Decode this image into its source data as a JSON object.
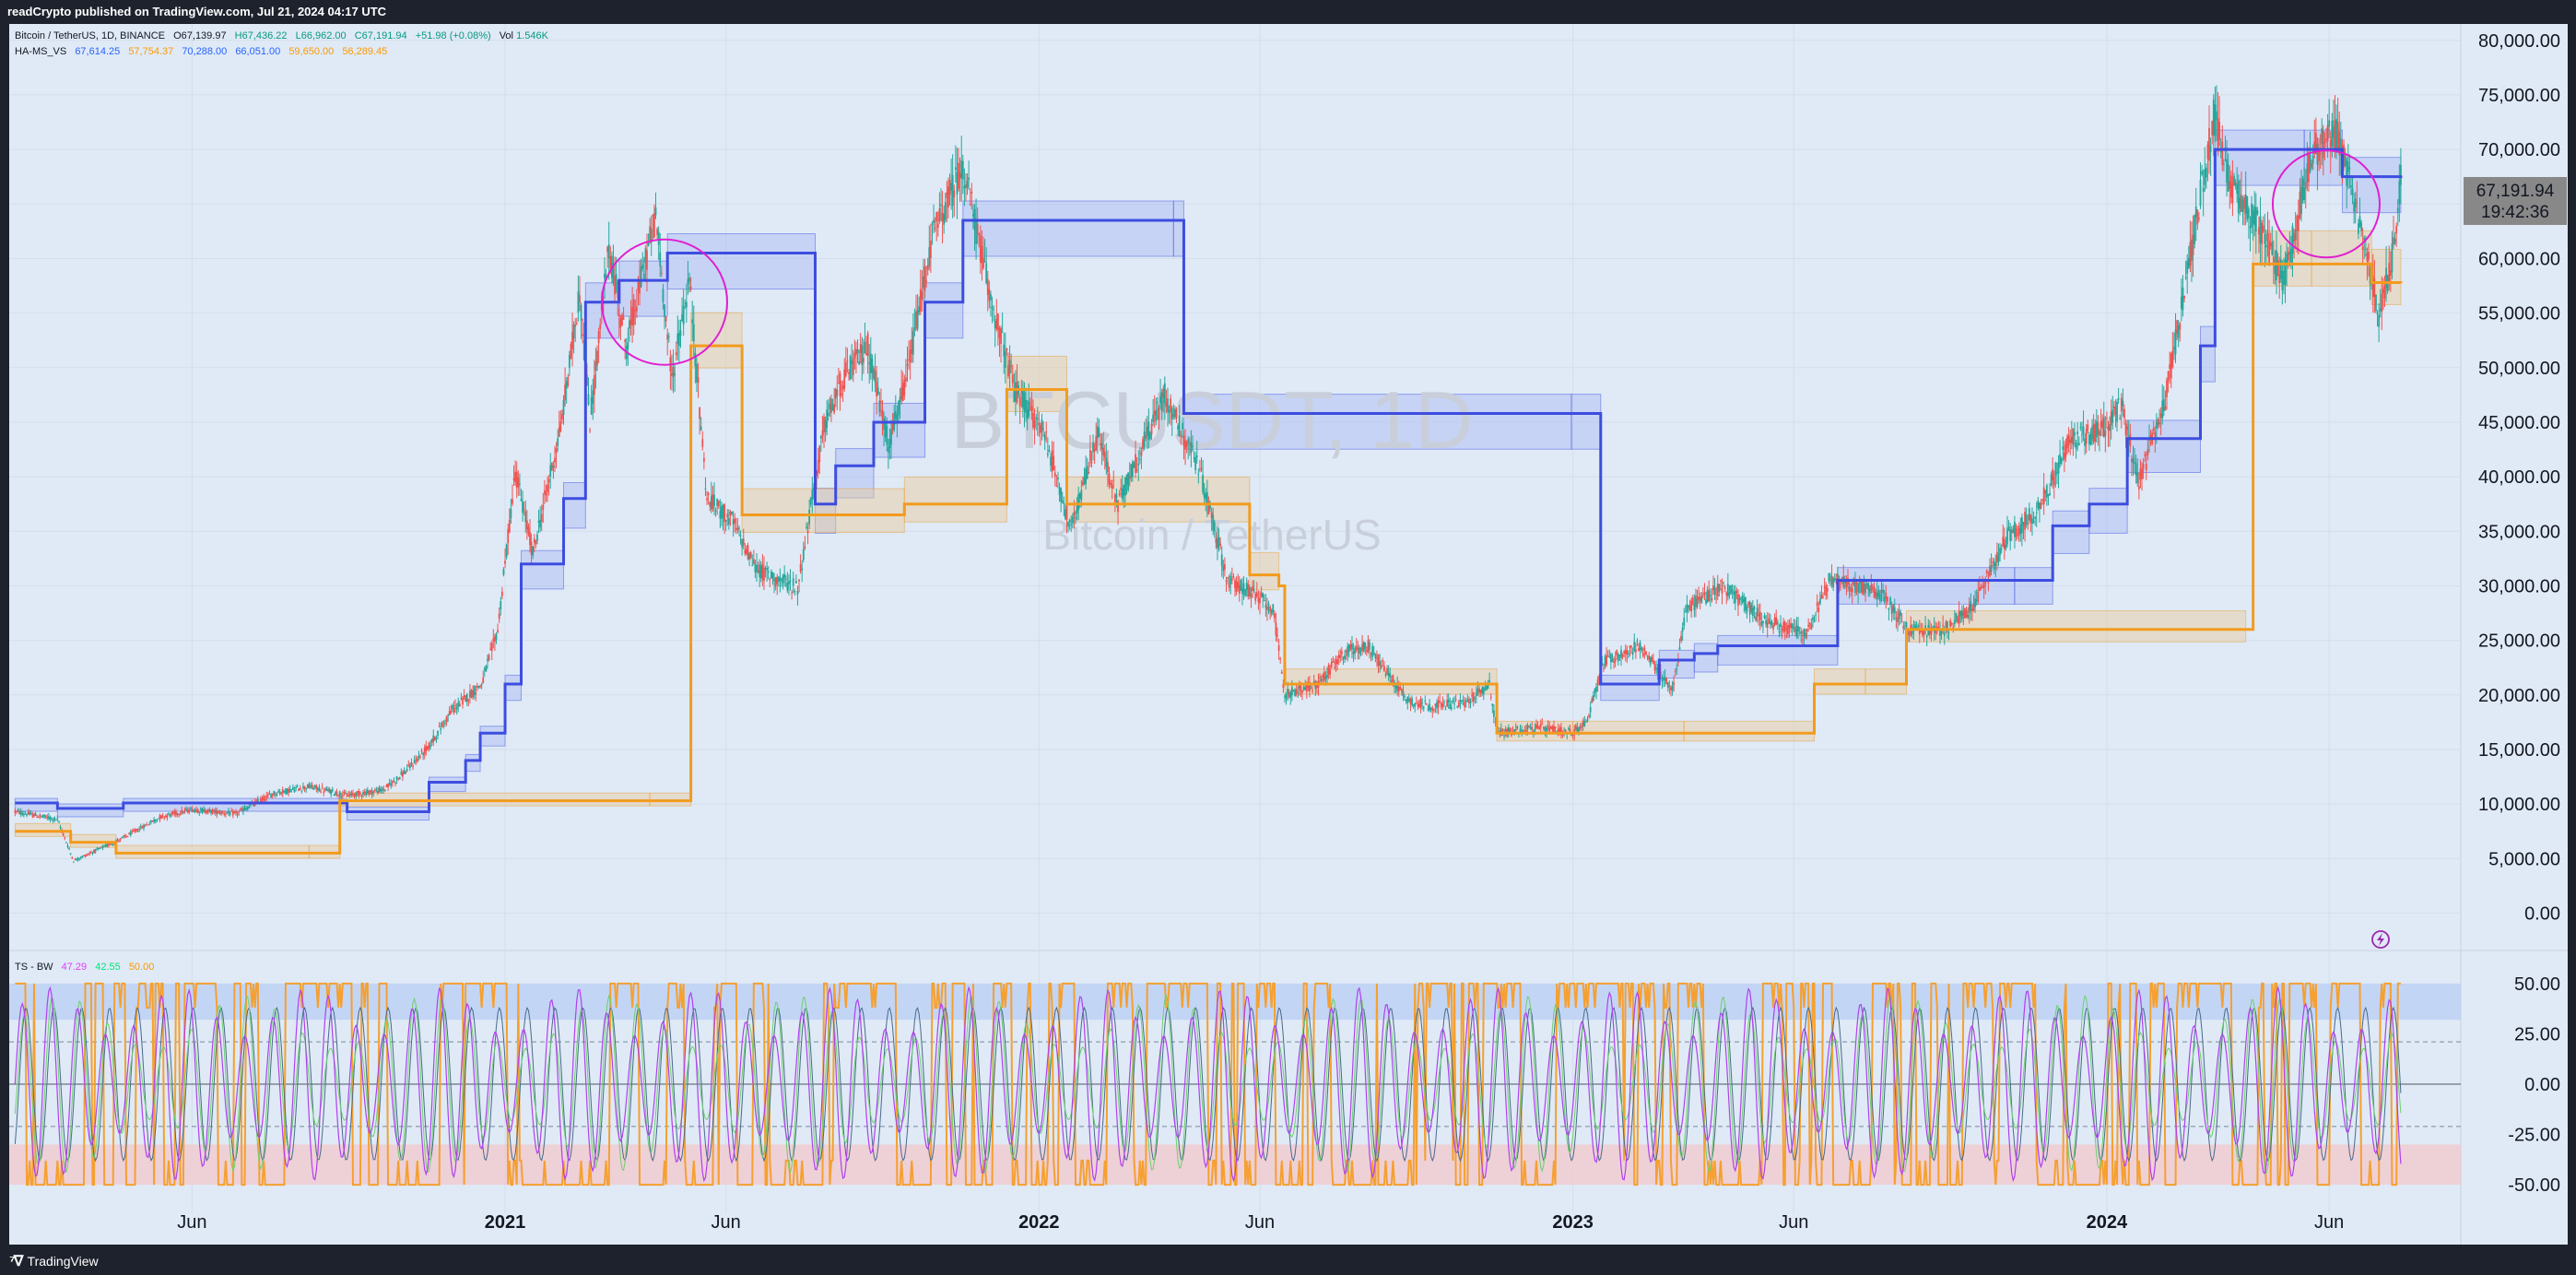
{
  "header": {
    "published_text": "readCrypto published on TradingView.com, Jul 21, 2024 04:17 UTC"
  },
  "footer": {
    "brand": "TradingView",
    "brand_icon": "tradingview-logo-icon"
  },
  "symbol_legend": {
    "symbol": "Bitcoin / TetherUS, 1D, BINANCE",
    "open": "O67,139.97",
    "high": "H67,436.22",
    "low": "L66,962.00",
    "close": "C67,191.94",
    "change": "+51.98 (+0.08%)",
    "volume_label": "Vol",
    "volume": "1.546K"
  },
  "indicator_legend": {
    "name": "HA-MS_VS",
    "values": [
      {
        "text": "67,614.25",
        "color": "#2962ff"
      },
      {
        "text": "57,754.37",
        "color": "#ff9800"
      },
      {
        "text": "70,288.00",
        "color": "#2962ff"
      },
      {
        "text": "66,051.00",
        "color": "#2962ff"
      },
      {
        "text": "59,650.00",
        "color": "#ff9800"
      },
      {
        "text": "56,289.45",
        "color": "#ff9800"
      }
    ]
  },
  "oscillator_legend": {
    "name": "TS - BW",
    "values": [
      {
        "text": "47.29",
        "color": "#e040fb"
      },
      {
        "text": "42.55",
        "color": "#00e676"
      },
      {
        "text": "50.00",
        "color": "#ff9800"
      }
    ]
  },
  "watermark": {
    "symbol": "BTCUSDT, 1D",
    "description": "Bitcoin / TetherUS"
  },
  "price_label": {
    "price": "67,191.94",
    "countdown": "19:42:36"
  },
  "alert_icon": "lightning-alert-icon",
  "colors": {
    "background": "#dfeaf6",
    "up_candle": "#26a69a",
    "down_candle": "#ef5350",
    "ha_high": "#3d4de0",
    "ha_low": "#f29b1e",
    "circle": "#e020d0",
    "osc_purple": "#b040f0",
    "osc_green": "#6cd06c",
    "osc_orange": "#f5a030"
  },
  "chart_data": [
    {
      "type": "line",
      "title": "BTCUSDT, 1D",
      "subtitle": "Bitcoin / TetherUS",
      "x_tick_labels": [
        "Jun",
        "2021",
        "Jun",
        "2022",
        "Jun",
        "2023",
        "Jun",
        "2024",
        "Jun"
      ],
      "x_tick_dates": [
        "2020-06-01",
        "2021-01-01",
        "2021-06-01",
        "2022-01-01",
        "2022-06-01",
        "2023-01-01",
        "2023-06-01",
        "2024-01-01",
        "2024-06-01"
      ],
      "y_tick_labels": [
        "80,000.00",
        "75,000.00",
        "70,000.00",
        "65,000.00",
        "60,000.00",
        "55,000.00",
        "50,000.00",
        "45,000.00",
        "40,000.00",
        "35,000.00",
        "30,000.00",
        "25,000.00",
        "20,000.00",
        "15,000.00",
        "10,000.00",
        "5,000.00",
        "0.00"
      ],
      "ylim": [
        -3000,
        81500
      ],
      "x_range": [
        "2020-01-28",
        "2024-08-30"
      ],
      "series": [
        {
          "name": "Price (approx. close)",
          "x": [
            "2020-02-01",
            "2020-03-01",
            "2020-03-12",
            "2020-04-15",
            "2020-05-10",
            "2020-06-01",
            "2020-07-01",
            "2020-07-27",
            "2020-08-20",
            "2020-09-15",
            "2020-10-10",
            "2020-10-25",
            "2020-11-10",
            "2020-11-25",
            "2020-12-16",
            "2020-12-27",
            "2021-01-08",
            "2021-01-20",
            "2021-02-08",
            "2021-02-21",
            "2021-02-28",
            "2021-03-13",
            "2021-03-25",
            "2021-04-14",
            "2021-04-25",
            "2021-05-07",
            "2021-05-19",
            "2021-06-05",
            "2021-06-22",
            "2021-07-20",
            "2021-08-07",
            "2021-08-20",
            "2021-09-06",
            "2021-09-20",
            "2021-10-01",
            "2021-10-20",
            "2021-11-10",
            "2021-11-28",
            "2021-12-15",
            "2022-01-05",
            "2022-01-23",
            "2022-02-10",
            "2022-02-24",
            "2022-03-28",
            "2022-04-20",
            "2022-05-10",
            "2022-05-25",
            "2022-06-10",
            "2022-06-18",
            "2022-07-10",
            "2022-07-30",
            "2022-08-14",
            "2022-09-10",
            "2022-09-25",
            "2022-10-20",
            "2022-11-05",
            "2022-11-10",
            "2022-12-10",
            "2022-12-31",
            "2023-01-10",
            "2023-01-22",
            "2023-02-15",
            "2023-03-10",
            "2023-03-20",
            "2023-04-14",
            "2023-05-10",
            "2023-06-10",
            "2023-06-25",
            "2023-07-15",
            "2023-08-01",
            "2023-08-18",
            "2023-09-10",
            "2023-10-01",
            "2023-10-25",
            "2023-11-15",
            "2023-12-08",
            "2024-01-01",
            "2024-01-11",
            "2024-01-23",
            "2024-02-10",
            "2024-02-28",
            "2024-03-14",
            "2024-03-25",
            "2024-04-13",
            "2024-05-01",
            "2024-05-21",
            "2024-06-07",
            "2024-06-25",
            "2024-07-05",
            "2024-07-14",
            "2024-07-20"
          ],
          "y": [
            9300,
            8600,
            4800,
            6900,
            8800,
            9500,
            9100,
            11000,
            11600,
            10800,
            11300,
            13000,
            15300,
            18500,
            21000,
            26000,
            40500,
            33000,
            44500,
            57000,
            45000,
            61000,
            52000,
            64000,
            49000,
            58000,
            38000,
            36000,
            31500,
            29800,
            44500,
            49000,
            52000,
            43000,
            48000,
            62000,
            68500,
            57000,
            48000,
            44000,
            35000,
            44000,
            37500,
            47500,
            41000,
            30500,
            29500,
            28000,
            20000,
            21000,
            24000,
            24500,
            19500,
            19000,
            19300,
            21000,
            16500,
            17000,
            16500,
            17500,
            23000,
            24500,
            20500,
            28000,
            30000,
            27000,
            25500,
            30500,
            30000,
            29200,
            26000,
            25800,
            28000,
            34500,
            37000,
            43500,
            44500,
            46500,
            39500,
            47000,
            61000,
            73000,
            67000,
            63000,
            58000,
            70000,
            71500,
            61000,
            55000,
            60000,
            67192
          ]
        },
        {
          "name": "HA-MS_VS high",
          "x": [
            "2020-02-01",
            "2020-03-01",
            "2020-04-15",
            "2020-09-15",
            "2020-11-10",
            "2020-12-05",
            "2020-12-15",
            "2021-01-01",
            "2021-01-12",
            "2021-02-10",
            "2021-02-25",
            "2021-03-20",
            "2021-04-22",
            "2021-08-01",
            "2021-08-15",
            "2021-09-10",
            "2021-10-15",
            "2021-11-10",
            "2022-04-03",
            "2022-04-10",
            "2022-12-31",
            "2023-01-20",
            "2023-03-01",
            "2023-03-25",
            "2023-04-10",
            "2023-07-01",
            "2023-10-30",
            "2023-11-25",
            "2023-12-20",
            "2024-01-15",
            "2024-03-05",
            "2024-03-15",
            "2024-05-15",
            "2024-06-10",
            "2024-07-20"
          ],
          "y": [
            10100,
            9600,
            10100,
            9300,
            12000,
            14000,
            16500,
            21000,
            32000,
            38000,
            56000,
            58000,
            60500,
            37500,
            41000,
            45000,
            56000,
            63500,
            63500,
            45800,
            45800,
            21000,
            23200,
            23800,
            24500,
            30500,
            30500,
            35500,
            37500,
            43500,
            52000,
            70000,
            70000,
            67500,
            67614
          ]
        },
        {
          "name": "HA-MS_VS low",
          "x": [
            "2020-02-01",
            "2020-03-10",
            "2020-04-10",
            "2020-08-20",
            "2020-09-10",
            "2021-04-10",
            "2021-05-08",
            "2021-06-12",
            "2021-10-01",
            "2021-12-10",
            "2022-01-20",
            "2022-05-25",
            "2022-06-14",
            "2022-06-18",
            "2022-11-10",
            "2023-01-01",
            "2023-03-18",
            "2023-06-15",
            "2023-07-20",
            "2023-08-17",
            "2024-04-05",
            "2024-04-10",
            "2024-05-20",
            "2024-06-30",
            "2024-07-20"
          ],
          "y": [
            7500,
            6500,
            5500,
            5500,
            10300,
            10300,
            52000,
            36500,
            37500,
            48000,
            37500,
            31000,
            30000,
            21000,
            16500,
            16500,
            16500,
            21000,
            21000,
            26000,
            26000,
            59500,
            59500,
            57800,
            57754
          ]
        },
        {
          "name": "TS - BW (purple)",
          "axis": "oscillator",
          "ylim": [
            -55,
            55
          ],
          "y_tick_labels": [
            "50.00",
            "25.00",
            "0.00",
            "-25.00",
            "-50.00"
          ],
          "last_value": 47.29
        },
        {
          "name": "TS - BW (green)",
          "axis": "oscillator",
          "last_value": 42.55
        },
        {
          "name": "TS - BW (orange)",
          "axis": "oscillator",
          "last_value": 50.0
        }
      ],
      "grid": true,
      "legend": "top-left",
      "annotations": [
        "circle around 2021 April top",
        "circle around 2024 April–July top"
      ]
    }
  ]
}
